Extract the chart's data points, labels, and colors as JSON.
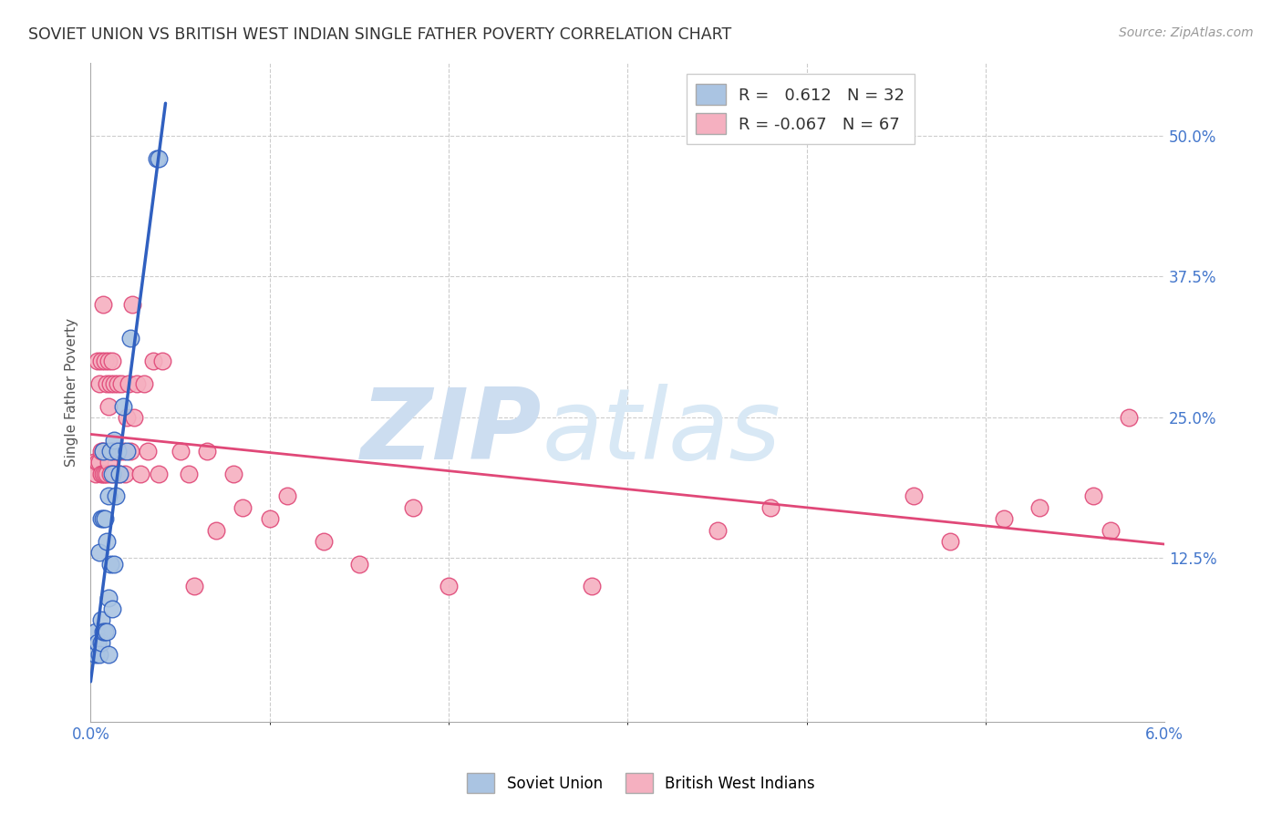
{
  "title": "SOVIET UNION VS BRITISH WEST INDIAN SINGLE FATHER POVERTY CORRELATION CHART",
  "source": "Source: ZipAtlas.com",
  "ylabel": "Single Father Poverty",
  "ytick_labels": [
    "50.0%",
    "37.5%",
    "25.0%",
    "12.5%"
  ],
  "ytick_values": [
    0.5,
    0.375,
    0.25,
    0.125
  ],
  "xlim": [
    0.0,
    0.06
  ],
  "ylim": [
    -0.02,
    0.565
  ],
  "legend_soviet": "Soviet Union",
  "legend_bwi": "British West Indians",
  "r_soviet": 0.612,
  "n_soviet": 32,
  "r_bwi": -0.067,
  "n_bwi": 67,
  "color_soviet": "#aac4e2",
  "color_bwi": "#f5b0c0",
  "line_color_soviet": "#3060c0",
  "line_color_bwi": "#e04878",
  "background_color": "#ffffff",
  "watermark_zip": "ZIP",
  "watermark_atlas": "atlas",
  "watermark_color": "#ddeeff",
  "soviet_x": [
    0.0003,
    0.0003,
    0.0004,
    0.0005,
    0.0005,
    0.0006,
    0.0006,
    0.0006,
    0.0007,
    0.0007,
    0.0007,
    0.0008,
    0.0008,
    0.0009,
    0.0009,
    0.001,
    0.001,
    0.001,
    0.0011,
    0.0011,
    0.0012,
    0.0012,
    0.0013,
    0.0013,
    0.0014,
    0.0015,
    0.0016,
    0.0018,
    0.002,
    0.0022,
    0.0037,
    0.0038
  ],
  "soviet_y": [
    0.04,
    0.06,
    0.05,
    0.04,
    0.13,
    0.05,
    0.07,
    0.16,
    0.06,
    0.16,
    0.22,
    0.06,
    0.16,
    0.06,
    0.14,
    0.04,
    0.09,
    0.18,
    0.12,
    0.22,
    0.08,
    0.2,
    0.12,
    0.23,
    0.18,
    0.22,
    0.2,
    0.26,
    0.22,
    0.32,
    0.48,
    0.48
  ],
  "bwi_x": [
    0.0002,
    0.0003,
    0.0004,
    0.0004,
    0.0005,
    0.0005,
    0.0006,
    0.0006,
    0.0006,
    0.0007,
    0.0007,
    0.0007,
    0.0008,
    0.0008,
    0.0009,
    0.0009,
    0.001,
    0.001,
    0.001,
    0.0011,
    0.0011,
    0.0012,
    0.0012,
    0.0013,
    0.0013,
    0.0014,
    0.0015,
    0.0016,
    0.0016,
    0.0017,
    0.0018,
    0.0019,
    0.002,
    0.0021,
    0.0022,
    0.0023,
    0.0024,
    0.0026,
    0.0028,
    0.003,
    0.0032,
    0.0035,
    0.0038,
    0.004,
    0.005,
    0.0055,
    0.0058,
    0.0065,
    0.007,
    0.008,
    0.0085,
    0.01,
    0.011,
    0.013,
    0.015,
    0.018,
    0.02,
    0.028,
    0.035,
    0.038,
    0.046,
    0.048,
    0.051,
    0.053,
    0.056,
    0.057,
    0.058
  ],
  "bwi_y": [
    0.21,
    0.2,
    0.21,
    0.3,
    0.21,
    0.28,
    0.2,
    0.22,
    0.3,
    0.2,
    0.22,
    0.35,
    0.2,
    0.3,
    0.2,
    0.28,
    0.21,
    0.26,
    0.3,
    0.2,
    0.28,
    0.22,
    0.3,
    0.2,
    0.28,
    0.22,
    0.28,
    0.2,
    0.22,
    0.28,
    0.22,
    0.2,
    0.25,
    0.28,
    0.22,
    0.35,
    0.25,
    0.28,
    0.2,
    0.28,
    0.22,
    0.3,
    0.2,
    0.3,
    0.22,
    0.2,
    0.1,
    0.22,
    0.15,
    0.2,
    0.17,
    0.16,
    0.18,
    0.14,
    0.12,
    0.17,
    0.1,
    0.1,
    0.15,
    0.17,
    0.18,
    0.14,
    0.16,
    0.17,
    0.18,
    0.15,
    0.25
  ]
}
